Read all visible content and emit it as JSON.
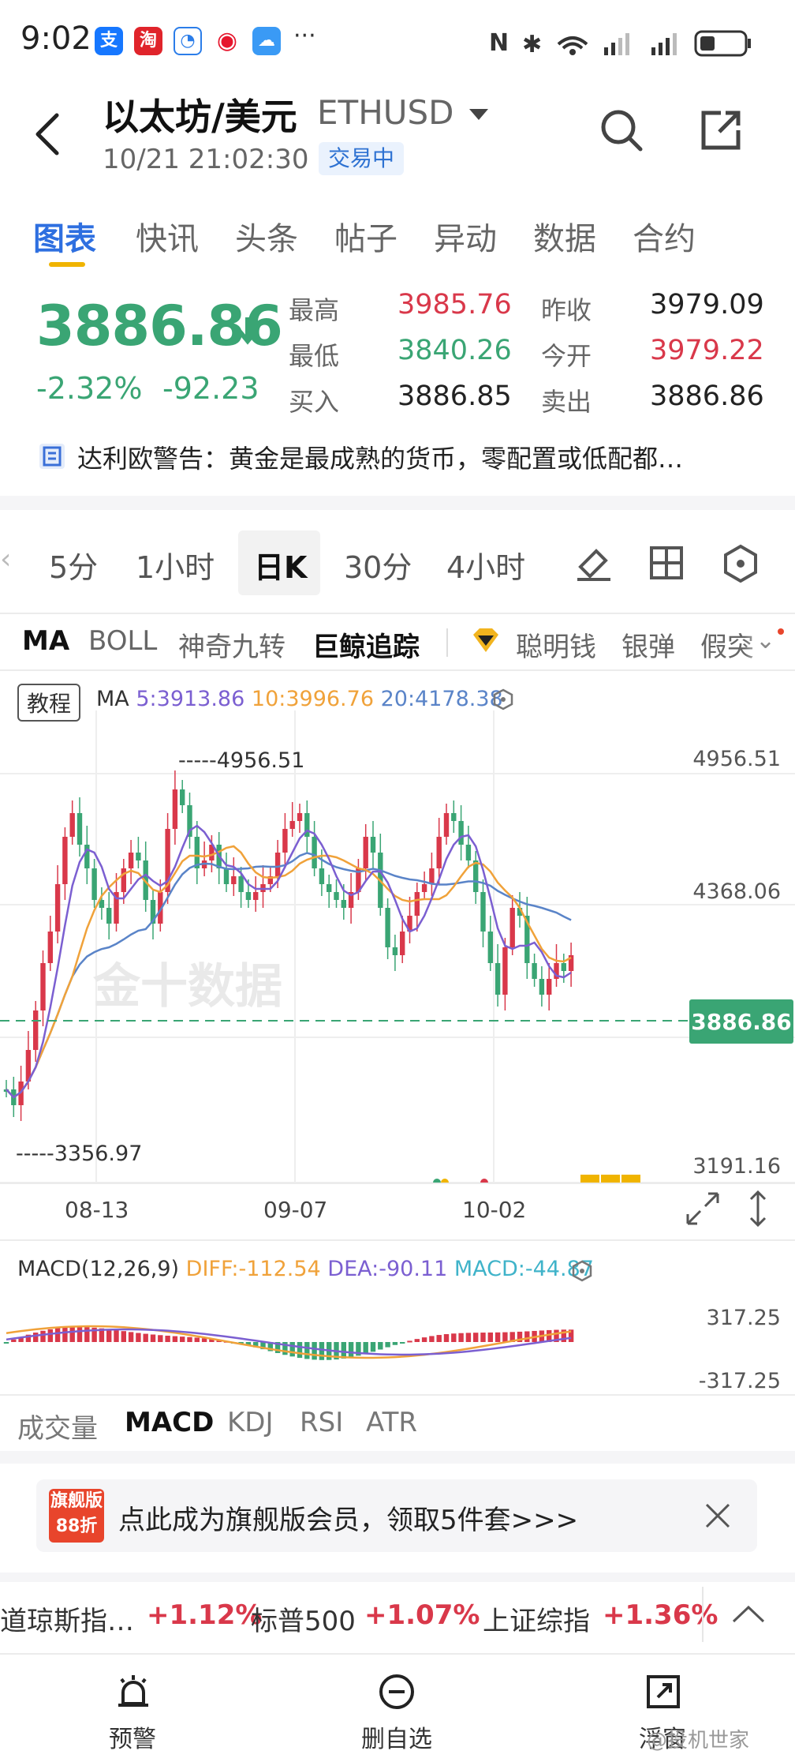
{
  "status": {
    "time": "9:02"
  },
  "header": {
    "title": "以太坊/美元",
    "symbol": "ETHUSD",
    "datetime": "10/21 21:02:30",
    "badge": "交易中"
  },
  "tabs": [
    "图表",
    "快讯",
    "头条",
    "帖子",
    "异动",
    "数据",
    "合约"
  ],
  "quote": {
    "price": "3886.86",
    "change_pct": "-2.32%",
    "change_abs": "-92.23",
    "high_label": "最高",
    "high": "3985.76",
    "low_label": "最低",
    "low": "3840.26",
    "bid_label": "买入",
    "bid": "3886.85",
    "prev_close_label": "昨收",
    "prev_close": "3979.09",
    "open_label": "今开",
    "open": "3979.22",
    "ask_label": "卖出",
    "ask": "3886.86"
  },
  "news": "达利欧警告：黄金是最成熟的货币，零配置或低配都…",
  "periods": [
    "5分",
    "1小时",
    "日K",
    "30分",
    "4小时"
  ],
  "indicators": [
    "MA",
    "BOLL",
    "神奇九转",
    "巨鲸追踪",
    "聪明钱",
    "银弹",
    "假突"
  ],
  "chart": {
    "tutorial": "教程",
    "ma_label": "MA",
    "ma5": "5:3913.86",
    "ma10": "10:3996.76",
    "ma20": "20:4178.38",
    "axis_top": "4956.51",
    "axis_mid": "4368.06",
    "axis_bottom": "3191.16",
    "current_price": "3886.86",
    "high_marker": "4956.51",
    "low_marker": "3356.97",
    "dates": [
      "08-13",
      "09-07",
      "10-02"
    ],
    "watermark": "金十数据",
    "colors": {
      "up": "#d9384a",
      "down": "#3aa574",
      "ma5": "#7b5fd1",
      "ma10": "#f0a23a",
      "ma20": "#5a84c8"
    }
  },
  "macd": {
    "label": "MACD(12,26,9)",
    "diff": "DIFF:-112.54",
    "dea": "DEA:-90.11",
    "macd": "MACD:-44.87",
    "axis_top": "317.25",
    "axis_bottom": "-317.25"
  },
  "sub_tabs": [
    "成交量",
    "MACD",
    "KDJ",
    "RSI",
    "ATR"
  ],
  "promo": {
    "badge_line1": "旗舰版",
    "badge_line2": "88折",
    "text": "点此成为旗舰版会员，领取5件套>>>"
  },
  "ticker": [
    {
      "name": "道琼斯指…",
      "change": "+1.12%"
    },
    {
      "name": "标普500",
      "change": "+1.07%"
    },
    {
      "name": "上证综指",
      "change": "+1.36%"
    }
  ],
  "nav": [
    "预警",
    "删自选",
    "浮窗"
  ],
  "watermark": "@投机世家"
}
